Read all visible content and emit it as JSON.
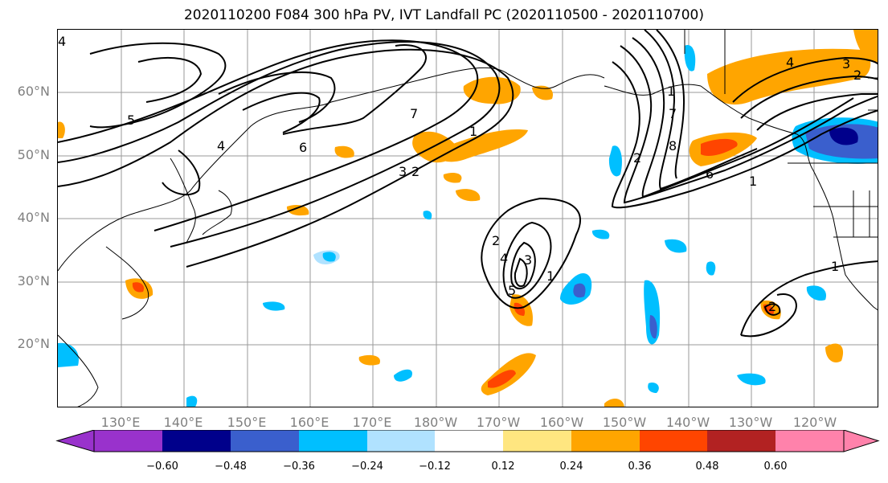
{
  "title": "2020110200 F084 300 hPa PV, IVT Landfall PC (2020110500 - 2020110700)",
  "lat_labels": [
    "60°N",
    "50°N",
    "40°N",
    "30°N",
    "20°N"
  ],
  "lon_labels": [
    "130°E",
    "140°E",
    "150°E",
    "160°E",
    "170°E",
    "180°W",
    "170°W",
    "160°W",
    "150°W",
    "140°W",
    "130°W",
    "120°W"
  ],
  "colorbar": {
    "tick_labels": [
      "−0.60",
      "−0.48",
      "−0.36",
      "−0.24",
      "−0.12",
      "0.12",
      "0.24",
      "0.36",
      "0.48",
      "0.60"
    ],
    "colors": [
      "#9932CC",
      "#00008B",
      "#3A5FCD",
      "#00BFFF",
      "#B0E2FF",
      "#FFFFFF",
      "#FFE680",
      "#FFA500",
      "#FF4500",
      "#B22222",
      "#FF82AB"
    ]
  },
  "contour_labels": [
    "4",
    "5",
    "4",
    "6",
    "7",
    "1",
    "2",
    "3",
    "1",
    "2",
    "3",
    "4",
    "5",
    "1",
    "2",
    "6",
    "8",
    "7",
    "4",
    "3",
    "2",
    "1",
    "1",
    "2"
  ]
}
